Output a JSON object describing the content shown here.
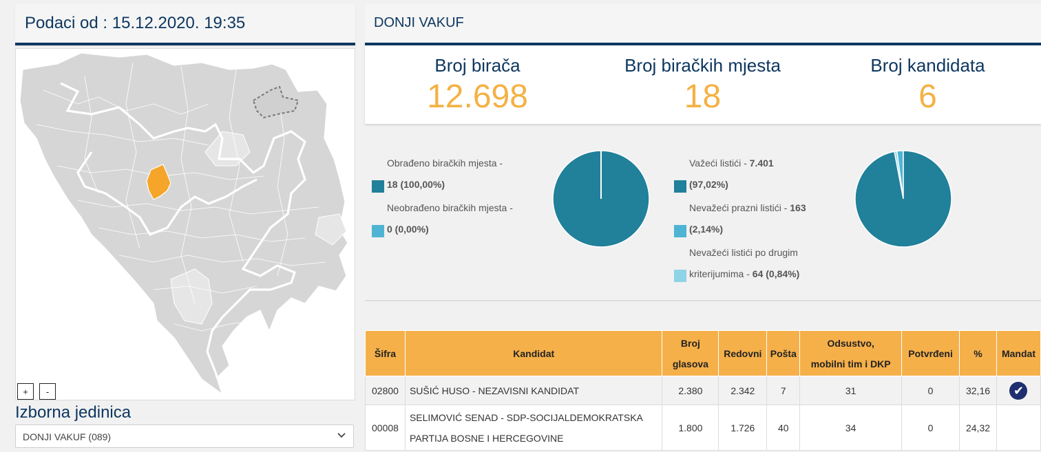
{
  "header": {
    "data_timestamp": "Podaci od : 15.12.2020. 19:35"
  },
  "map": {
    "zoom_in": "+",
    "zoom_out": "-",
    "highlight_color": "#f5a62a",
    "base_color": "#d6d6d6"
  },
  "selector": {
    "label": "Izborna jedinica",
    "value": "DONJI VAKUF (089)"
  },
  "unit": {
    "title": "DONJI VAKUF"
  },
  "stats": {
    "voters_label": "Broj birača",
    "voters_value": "12.698",
    "stations_label": "Broj biračkih mjesta",
    "stations_value": "18",
    "candidates_label": "Broj kandidata",
    "candidates_value": "6"
  },
  "processing": {
    "processed_label": "Obrađeno biračkih mjesta -",
    "processed_value": "18 (100,00%)",
    "unprocessed_label": "Neobrađeno biračkih mjesta -",
    "unprocessed_value": "0 (0,00%)",
    "processed_fraction": 1.0,
    "processed_color": "#21809a",
    "unprocessed_color": "#4fb4d3"
  },
  "ballots": {
    "valid_label": "Važeći listići -",
    "valid_value": "7.401",
    "valid_pct": "(97,02%)",
    "blank_label": "Nevažeći prazni listići -",
    "blank_value": "163",
    "blank_pct": "(2,14%)",
    "other_label_1": "Nevažeći listići po drugim",
    "other_label_2": "kriterijumima -",
    "other_value": "64 (0,84%)",
    "fractions": [
      0.9702,
      0.0214,
      0.0084
    ],
    "colors": [
      "#21809a",
      "#4fb4d3",
      "#8fd3e6"
    ]
  },
  "table": {
    "headers": {
      "sifra": "Šifra",
      "kandidat": "Kandidat",
      "glasovi_1": "Broj",
      "glasovi_2": "glasova",
      "redovni": "Redovni",
      "posta": "Pošta",
      "odsustvo_1": "Odsustvo,",
      "odsustvo_2": "mobilni tim i DKP",
      "potvrdeni": "Potvrđeni",
      "pct": "%",
      "mandat": "Mandat"
    },
    "rows": [
      {
        "sifra": "02800",
        "kandidat_1": "SUŠIĆ HUSO - NEZAVISNI KANDIDAT",
        "kandidat_2": "",
        "glasovi": "2.380",
        "redovni": "2.342",
        "posta": "7",
        "odsustvo": "31",
        "potvrdeni": "0",
        "pct": "32,16",
        "mandat": "check-circle-icon"
      },
      {
        "sifra": "00008",
        "kandidat_1": "SELIMOVIĆ SENAD - SDP-SOCIJALDEMOKRATSKA",
        "kandidat_2": "PARTIJA BOSNE I HERCEGOVINE",
        "glasovi": "1.800",
        "redovni": "1.726",
        "posta": "40",
        "odsustvo": "34",
        "potvrdeni": "0",
        "pct": "24,32",
        "mandat": ""
      }
    ]
  }
}
